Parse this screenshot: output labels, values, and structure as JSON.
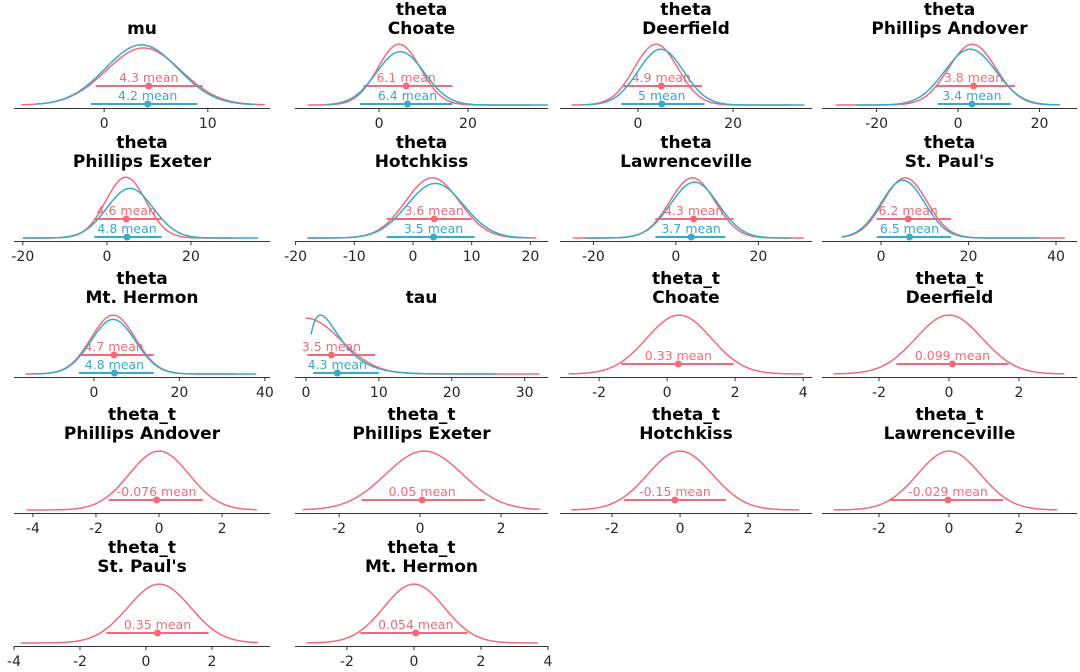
{
  "colors": {
    "chain_0": "#f26b7b",
    "chain_1": "#3aaac6",
    "axis": "#333333"
  },
  "chart_data": [
    {
      "type": "line",
      "title": [
        "mu"
      ],
      "xlim": [
        -8.7,
        16
      ],
      "ticks": [
        0,
        10
      ],
      "series": [
        {
          "color": "chain_0",
          "mean": 4.3,
          "mean_label": "4.3 mean",
          "hdi": [
            -0.8,
            9.5
          ],
          "kde": {
            "mode": 3.8,
            "sd": 3.6,
            "range": [
              -8,
              15.5
            ],
            "peak": 0.92
          }
        },
        {
          "color": "chain_1",
          "mean": 4.2,
          "mean_label": "4.2 mean",
          "hdi": [
            -1.3,
            9
          ],
          "kde": {
            "mode": 3.6,
            "sd": 3.5,
            "range": [
              -6.5,
              14.5
            ],
            "peak": 0.97
          }
        }
      ]
    },
    {
      "type": "line",
      "title": [
        "theta",
        "Choate"
      ],
      "xlim": [
        -18.9,
        38
      ],
      "ticks": [
        0,
        20
      ],
      "series": [
        {
          "color": "chain_0",
          "mean": 6.1,
          "mean_label": "6.1 mean",
          "hdi": [
            -3.5,
            16.5
          ],
          "kde": {
            "mode": 4.5,
            "sd": 4.8,
            "range": [
              -16,
              34
            ],
            "peak": 0.98
          }
        },
        {
          "color": "chain_1",
          "mean": 6.4,
          "mean_label": "6.4 mean",
          "hdi": [
            -4.3,
            16.5
          ],
          "kde": {
            "mode": 4.8,
            "sd": 5.4,
            "range": [
              -12,
              38
            ],
            "peak": 0.86
          }
        }
      ]
    },
    {
      "type": "line",
      "title": [
        "theta",
        "Deerfield"
      ],
      "xlim": [
        -16.4,
        36.6
      ],
      "ticks": [
        0,
        20
      ],
      "series": [
        {
          "color": "chain_0",
          "mean": 4.9,
          "mean_label": "4.9 mean",
          "hdi": [
            -3,
            13.5
          ],
          "kde": {
            "mode": 3.8,
            "sd": 4.6,
            "range": [
              -14,
              32
            ],
            "peak": 0.98
          }
        },
        {
          "color": "chain_1",
          "mean": 5,
          "mean_label": "5 mean",
          "hdi": [
            -3.5,
            14
          ],
          "kde": {
            "mode": 4.8,
            "sd": 4.8,
            "range": [
              -12,
              35
            ],
            "peak": 0.9
          }
        }
      ]
    },
    {
      "type": "line",
      "title": [
        "theta",
        "Phillips Andover"
      ],
      "xlim": [
        -33.4,
        29.2
      ],
      "ticks": [
        -20,
        0,
        20
      ],
      "series": [
        {
          "color": "chain_0",
          "mean": 3.8,
          "mean_label": "3.8 mean",
          "hdi": [
            -5.5,
            14
          ],
          "kde": {
            "mode": 3.5,
            "sd": 5.8,
            "range": [
              -30,
              24
            ],
            "peak": 0.98
          }
        },
        {
          "color": "chain_1",
          "mean": 3.4,
          "mean_label": "3.4 mean",
          "hdi": [
            -5,
            13
          ],
          "kde": {
            "mode": 3,
            "sd": 6.3,
            "range": [
              -25,
              25
            ],
            "peak": 0.9
          }
        }
      ]
    },
    {
      "type": "line",
      "title": [
        "theta",
        "Phillips Exeter"
      ],
      "xlim": [
        -22.1,
        38.8
      ],
      "ticks": [
        -20,
        0,
        20
      ],
      "series": [
        {
          "color": "chain_0",
          "mean": 4.6,
          "mean_label": "4.6 mean",
          "hdi": [
            -3,
            13
          ],
          "kde": {
            "mode": 4.5,
            "sd": 4.8,
            "range": [
              -20,
              30
            ],
            "peak": 0.98
          }
        },
        {
          "color": "chain_1",
          "mean": 4.8,
          "mean_label": "4.8 mean",
          "hdi": [
            -3,
            13
          ],
          "kde": {
            "mode": 5.5,
            "sd": 5.5,
            "range": [
              -20,
              36
            ],
            "peak": 0.8
          }
        }
      ]
    },
    {
      "type": "line",
      "title": [
        "theta",
        "Hotchkiss"
      ],
      "xlim": [
        -20.1,
        23
      ],
      "ticks": [
        -20,
        -10,
        0,
        10,
        20
      ],
      "series": [
        {
          "color": "chain_0",
          "mean": 3.6,
          "mean_label": "3.6 mean",
          "hdi": [
            -4.5,
            10
          ],
          "kde": {
            "mode": 3.3,
            "sd": 4.6,
            "range": [
              -18,
              21
            ],
            "peak": 0.97
          }
        },
        {
          "color": "chain_1",
          "mean": 3.5,
          "mean_label": "3.5 mean",
          "hdi": [
            -4.5,
            10.5
          ],
          "kde": {
            "mode": 3.8,
            "sd": 4.8,
            "range": [
              -18,
              20
            ],
            "peak": 0.88
          }
        }
      ]
    },
    {
      "type": "line",
      "title": [
        "theta",
        "Lawrenceville"
      ],
      "xlim": [
        -28.1,
        33
      ],
      "ticks": [
        -20,
        0,
        20
      ],
      "series": [
        {
          "color": "chain_0",
          "mean": 4.3,
          "mean_label": "4.3 mean",
          "hdi": [
            -5,
            14
          ],
          "kde": {
            "mode": 4,
            "sd": 5.5,
            "range": [
              -25,
              31
            ],
            "peak": 0.97
          }
        },
        {
          "color": "chain_1",
          "mean": 3.7,
          "mean_label": "3.7 mean",
          "hdi": [
            -5,
            12
          ],
          "kde": {
            "mode": 4.5,
            "sd": 5.8,
            "range": [
              -22,
              28
            ],
            "peak": 0.9
          }
        }
      ]
    },
    {
      "type": "line",
      "title": [
        "theta",
        "St. Paul's"
      ],
      "xlim": [
        -13.5,
        44.8
      ],
      "ticks": [
        0,
        20,
        40
      ],
      "series": [
        {
          "color": "chain_0",
          "mean": 6.2,
          "mean_label": "6.2 mean",
          "hdi": [
            -1,
            16
          ],
          "kde": {
            "mode": 5.5,
            "sd": 5,
            "range": [
              -9,
              42
            ],
            "peak": 0.97
          }
        },
        {
          "color": "chain_1",
          "mean": 6.5,
          "mean_label": "6.5 mean",
          "hdi": [
            -1,
            16
          ],
          "kde": {
            "mode": 5,
            "sd": 5,
            "range": [
              -9,
              36
            ],
            "peak": 0.93
          }
        }
      ]
    },
    {
      "type": "line",
      "title": [
        "theta",
        "Mt. Hermon"
      ],
      "xlim": [
        -18.7,
        41.2
      ],
      "ticks": [
        0,
        20,
        40
      ],
      "series": [
        {
          "color": "chain_0",
          "mean": 4.7,
          "mean_label": "4.7 mean",
          "hdi": [
            -3.5,
            14
          ],
          "kde": {
            "mode": 4.5,
            "sd": 5.2,
            "range": [
              -16,
              33
            ],
            "peak": 0.95
          }
        },
        {
          "color": "chain_1",
          "mean": 4.8,
          "mean_label": "4.8 mean",
          "hdi": [
            -3.5,
            14
          ],
          "kde": {
            "mode": 4.5,
            "sd": 5.2,
            "range": [
              -14,
              38
            ],
            "peak": 0.88
          }
        }
      ]
    },
    {
      "type": "line",
      "title": [
        "tau"
      ],
      "xlim": [
        -1.5,
        33.2
      ],
      "ticks": [
        0,
        10,
        20,
        30
      ],
      "series": [
        {
          "color": "chain_0",
          "mean": 3.5,
          "mean_label": "3.5 mean",
          "hdi": [
            0.2,
            9.5
          ],
          "kde": {
            "shape": "halfnormal",
            "sd": 4.8,
            "range": [
              0,
              32
            ],
            "peak": 0.9
          }
        },
        {
          "color": "chain_1",
          "mean": 4.3,
          "mean_label": "4.3 mean",
          "hdi": [
            1,
            10
          ],
          "kde": {
            "shape": "gamma",
            "mode": 2,
            "scale": 2,
            "range": [
              0.7,
              26
            ],
            "peak": 0.95
          }
        }
      ]
    },
    {
      "type": "line",
      "title": [
        "theta_t",
        "Choate"
      ],
      "xlim": [
        -3.15,
        4.26
      ],
      "ticks": [
        -2,
        0,
        2,
        4
      ],
      "series": [
        {
          "color": "chain_0",
          "mean": 0.33,
          "mean_label": "0.33 mean",
          "hdi": [
            -1.35,
            1.95
          ],
          "kde": {
            "mode": 0.35,
            "sd": 0.95,
            "range": [
              -2.9,
              4
            ],
            "peak": 0.95
          }
        }
      ]
    },
    {
      "type": "line",
      "title": [
        "theta_t",
        "Deerfield"
      ],
      "xlim": [
        -3.63,
        3.66
      ],
      "ticks": [
        -2,
        0,
        2
      ],
      "series": [
        {
          "color": "chain_0",
          "mean": 0.099,
          "mean_label": "0.099 mean",
          "hdi": [
            -1.5,
            1.7
          ],
          "kde": {
            "mode": 0,
            "sd": 0.95,
            "range": [
              -3.3,
              3.3
            ],
            "peak": 0.95
          }
        }
      ]
    },
    {
      "type": "line",
      "title": [
        "theta_t",
        "Phillips Andover"
      ],
      "xlim": [
        -4.6,
        3.52
      ],
      "ticks": [
        -4,
        -2,
        0,
        2
      ],
      "series": [
        {
          "color": "chain_0",
          "mean": -0.076,
          "mean_label": "-0.076 mean",
          "hdi": [
            -1.6,
            1.4
          ],
          "kde": {
            "mode": 0,
            "sd": 0.95,
            "range": [
              -4.2,
              3.1
            ],
            "peak": 0.95
          }
        }
      ]
    },
    {
      "type": "line",
      "title": [
        "theta_t",
        "Phillips Exeter"
      ],
      "xlim": [
        -3.09,
        3.16
      ],
      "ticks": [
        -2,
        0,
        2
      ],
      "series": [
        {
          "color": "chain_0",
          "mean": 0.05,
          "mean_label": "0.05 mean",
          "hdi": [
            -1.45,
            1.6
          ],
          "kde": {
            "mode": 0.1,
            "sd": 0.95,
            "range": [
              -2.9,
              2.95
            ],
            "peak": 0.95
          }
        }
      ]
    },
    {
      "type": "line",
      "title": [
        "theta_t",
        "Hotchkiss"
      ],
      "xlim": [
        -3.53,
        3.88
      ],
      "ticks": [
        -2,
        0,
        2
      ],
      "series": [
        {
          "color": "chain_0",
          "mean": -0.15,
          "mean_label": "-0.15 mean",
          "hdi": [
            -1.65,
            1.35
          ],
          "kde": {
            "mode": 0,
            "sd": 0.95,
            "range": [
              -3.2,
              3.5
            ],
            "peak": 0.95
          }
        }
      ]
    },
    {
      "type": "line",
      "title": [
        "theta_t",
        "Lawrenceville"
      ],
      "xlim": [
        -3.63,
        3.66
      ],
      "ticks": [
        -2,
        0,
        2
      ],
      "series": [
        {
          "color": "chain_0",
          "mean": -0.029,
          "mean_label": "-0.029 mean",
          "hdi": [
            -1.7,
            1.55
          ],
          "kde": {
            "mode": 0,
            "sd": 0.9,
            "range": [
              -3.3,
              3.1
            ],
            "peak": 0.95
          }
        }
      ]
    },
    {
      "type": "line",
      "title": [
        "theta_t",
        "St. Paul's"
      ],
      "xlim": [
        -4,
        3.76
      ],
      "ticks": [
        -4,
        -2,
        0,
        2
      ],
      "series": [
        {
          "color": "chain_0",
          "mean": 0.35,
          "mean_label": "0.35 mean",
          "hdi": [
            -1.2,
            1.9
          ],
          "kde": {
            "mode": 0.4,
            "sd": 0.95,
            "range": [
              -3.8,
              3.4
            ],
            "peak": 0.95
          }
        }
      ]
    },
    {
      "type": "line",
      "title": [
        "theta_t",
        "Mt. Hermon"
      ],
      "xlim": [
        -3.55,
        4.0
      ],
      "ticks": [
        -2,
        0,
        2,
        4
      ],
      "series": [
        {
          "color": "chain_0",
          "mean": 0.054,
          "mean_label": "0.054 mean",
          "hdi": [
            -1.6,
            1.6
          ],
          "kde": {
            "mode": 0,
            "sd": 0.9,
            "range": [
              -3.2,
              3.7
            ],
            "peak": 0.95
          }
        }
      ]
    }
  ]
}
